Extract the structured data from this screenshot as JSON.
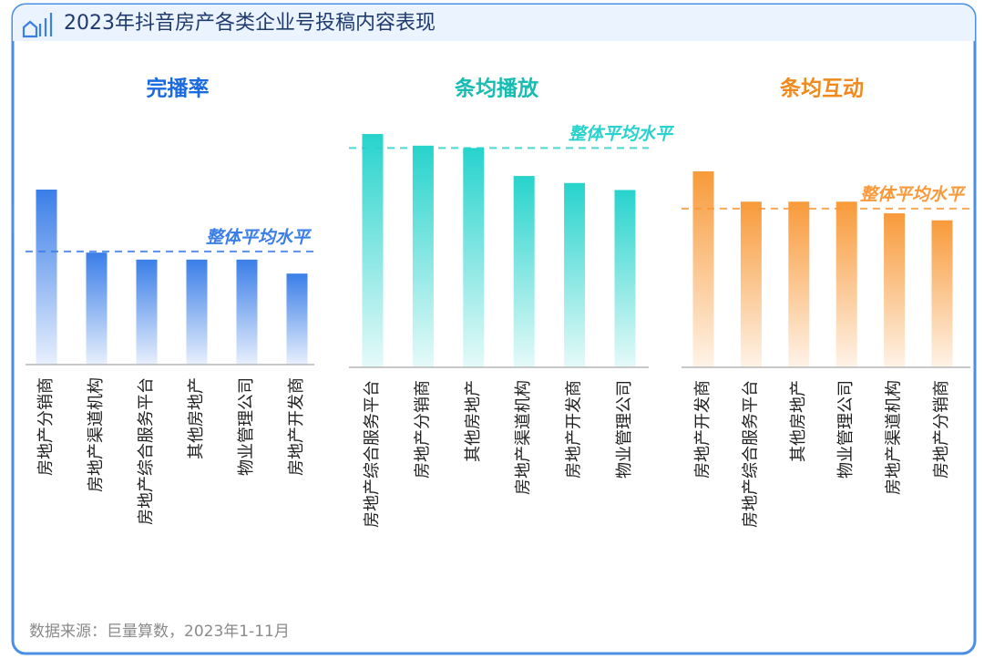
{
  "title": "2023年抖音房产各类企业号投稿内容表现",
  "source": "数据来源：巨量算数，2023年1-11月",
  "chart_data": [
    {
      "type": "bar",
      "title": "完播率",
      "color": "#3a7ee8",
      "title_color": "#1a6be0",
      "categories": [
        "房地产分销商",
        "房地产渠道机构",
        "房地产综合服务平台",
        "其他房地产",
        "物业管理公司",
        "房地产开发商"
      ],
      "values": [
        75,
        48,
        45,
        45,
        45,
        39
      ],
      "ylim": [
        0,
        100
      ],
      "reference_line": {
        "value": 48.5,
        "label": "整体平均水平"
      }
    },
    {
      "type": "bar",
      "title": "条均播放",
      "color": "#27d3cc",
      "title_color": "#17bdb2",
      "categories": [
        "房地产综合服务平台",
        "房地产分销商",
        "其他房地产",
        "房地产渠道机构",
        "房地产开发商",
        "物业管理公司"
      ],
      "values": [
        100,
        95,
        94,
        82,
        79,
        76
      ],
      "ylim": [
        0,
        100
      ],
      "reference_line": {
        "value": 94,
        "label": "整体平均水平"
      }
    },
    {
      "type": "bar",
      "title": "条均互动",
      "color": "#f89a3a",
      "title_color": "#f08a1e",
      "categories": [
        "房地产开发商",
        "房地产综合服务平台",
        "其他房地产",
        "物业管理公司",
        "房地产渠道机构",
        "房地产分销商"
      ],
      "values": [
        84,
        71,
        71,
        71,
        66,
        63
      ],
      "ylim": [
        0,
        100
      ],
      "reference_line": {
        "value": 68,
        "label": "整体平均水平"
      }
    }
  ]
}
